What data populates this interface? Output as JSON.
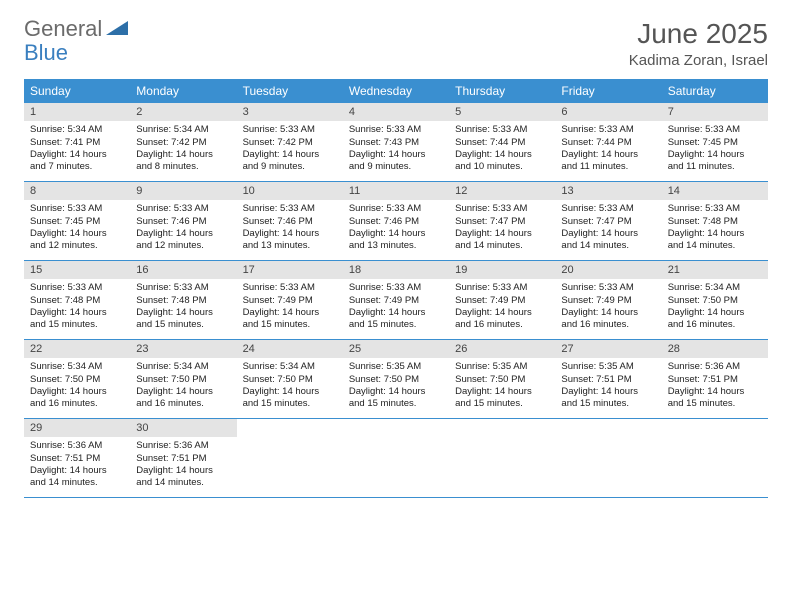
{
  "logo": {
    "text_gray": "General",
    "text_blue": "Blue"
  },
  "title": "June 2025",
  "location": "Kadima Zoran, Israel",
  "weekday_header_bg": "#3a8fd0",
  "weekday_header_fg": "#ffffff",
  "daynum_bg": "#e4e4e4",
  "weekdays": [
    "Sunday",
    "Monday",
    "Tuesday",
    "Wednesday",
    "Thursday",
    "Friday",
    "Saturday"
  ],
  "weeks": [
    [
      {
        "n": "1",
        "sr": "Sunrise: 5:34 AM",
        "ss": "Sunset: 7:41 PM",
        "dl": "Daylight: 14 hours and 7 minutes."
      },
      {
        "n": "2",
        "sr": "Sunrise: 5:34 AM",
        "ss": "Sunset: 7:42 PM",
        "dl": "Daylight: 14 hours and 8 minutes."
      },
      {
        "n": "3",
        "sr": "Sunrise: 5:33 AM",
        "ss": "Sunset: 7:42 PM",
        "dl": "Daylight: 14 hours and 9 minutes."
      },
      {
        "n": "4",
        "sr": "Sunrise: 5:33 AM",
        "ss": "Sunset: 7:43 PM",
        "dl": "Daylight: 14 hours and 9 minutes."
      },
      {
        "n": "5",
        "sr": "Sunrise: 5:33 AM",
        "ss": "Sunset: 7:44 PM",
        "dl": "Daylight: 14 hours and 10 minutes."
      },
      {
        "n": "6",
        "sr": "Sunrise: 5:33 AM",
        "ss": "Sunset: 7:44 PM",
        "dl": "Daylight: 14 hours and 11 minutes."
      },
      {
        "n": "7",
        "sr": "Sunrise: 5:33 AM",
        "ss": "Sunset: 7:45 PM",
        "dl": "Daylight: 14 hours and 11 minutes."
      }
    ],
    [
      {
        "n": "8",
        "sr": "Sunrise: 5:33 AM",
        "ss": "Sunset: 7:45 PM",
        "dl": "Daylight: 14 hours and 12 minutes."
      },
      {
        "n": "9",
        "sr": "Sunrise: 5:33 AM",
        "ss": "Sunset: 7:46 PM",
        "dl": "Daylight: 14 hours and 12 minutes."
      },
      {
        "n": "10",
        "sr": "Sunrise: 5:33 AM",
        "ss": "Sunset: 7:46 PM",
        "dl": "Daylight: 14 hours and 13 minutes."
      },
      {
        "n": "11",
        "sr": "Sunrise: 5:33 AM",
        "ss": "Sunset: 7:46 PM",
        "dl": "Daylight: 14 hours and 13 minutes."
      },
      {
        "n": "12",
        "sr": "Sunrise: 5:33 AM",
        "ss": "Sunset: 7:47 PM",
        "dl": "Daylight: 14 hours and 14 minutes."
      },
      {
        "n": "13",
        "sr": "Sunrise: 5:33 AM",
        "ss": "Sunset: 7:47 PM",
        "dl": "Daylight: 14 hours and 14 minutes."
      },
      {
        "n": "14",
        "sr": "Sunrise: 5:33 AM",
        "ss": "Sunset: 7:48 PM",
        "dl": "Daylight: 14 hours and 14 minutes."
      }
    ],
    [
      {
        "n": "15",
        "sr": "Sunrise: 5:33 AM",
        "ss": "Sunset: 7:48 PM",
        "dl": "Daylight: 14 hours and 15 minutes."
      },
      {
        "n": "16",
        "sr": "Sunrise: 5:33 AM",
        "ss": "Sunset: 7:48 PM",
        "dl": "Daylight: 14 hours and 15 minutes."
      },
      {
        "n": "17",
        "sr": "Sunrise: 5:33 AM",
        "ss": "Sunset: 7:49 PM",
        "dl": "Daylight: 14 hours and 15 minutes."
      },
      {
        "n": "18",
        "sr": "Sunrise: 5:33 AM",
        "ss": "Sunset: 7:49 PM",
        "dl": "Daylight: 14 hours and 15 minutes."
      },
      {
        "n": "19",
        "sr": "Sunrise: 5:33 AM",
        "ss": "Sunset: 7:49 PM",
        "dl": "Daylight: 14 hours and 16 minutes."
      },
      {
        "n": "20",
        "sr": "Sunrise: 5:33 AM",
        "ss": "Sunset: 7:49 PM",
        "dl": "Daylight: 14 hours and 16 minutes."
      },
      {
        "n": "21",
        "sr": "Sunrise: 5:34 AM",
        "ss": "Sunset: 7:50 PM",
        "dl": "Daylight: 14 hours and 16 minutes."
      }
    ],
    [
      {
        "n": "22",
        "sr": "Sunrise: 5:34 AM",
        "ss": "Sunset: 7:50 PM",
        "dl": "Daylight: 14 hours and 16 minutes."
      },
      {
        "n": "23",
        "sr": "Sunrise: 5:34 AM",
        "ss": "Sunset: 7:50 PM",
        "dl": "Daylight: 14 hours and 16 minutes."
      },
      {
        "n": "24",
        "sr": "Sunrise: 5:34 AM",
        "ss": "Sunset: 7:50 PM",
        "dl": "Daylight: 14 hours and 15 minutes."
      },
      {
        "n": "25",
        "sr": "Sunrise: 5:35 AM",
        "ss": "Sunset: 7:50 PM",
        "dl": "Daylight: 14 hours and 15 minutes."
      },
      {
        "n": "26",
        "sr": "Sunrise: 5:35 AM",
        "ss": "Sunset: 7:50 PM",
        "dl": "Daylight: 14 hours and 15 minutes."
      },
      {
        "n": "27",
        "sr": "Sunrise: 5:35 AM",
        "ss": "Sunset: 7:51 PM",
        "dl": "Daylight: 14 hours and 15 minutes."
      },
      {
        "n": "28",
        "sr": "Sunrise: 5:36 AM",
        "ss": "Sunset: 7:51 PM",
        "dl": "Daylight: 14 hours and 15 minutes."
      }
    ],
    [
      {
        "n": "29",
        "sr": "Sunrise: 5:36 AM",
        "ss": "Sunset: 7:51 PM",
        "dl": "Daylight: 14 hours and 14 minutes."
      },
      {
        "n": "30",
        "sr": "Sunrise: 5:36 AM",
        "ss": "Sunset: 7:51 PM",
        "dl": "Daylight: 14 hours and 14 minutes."
      },
      null,
      null,
      null,
      null,
      null
    ]
  ]
}
